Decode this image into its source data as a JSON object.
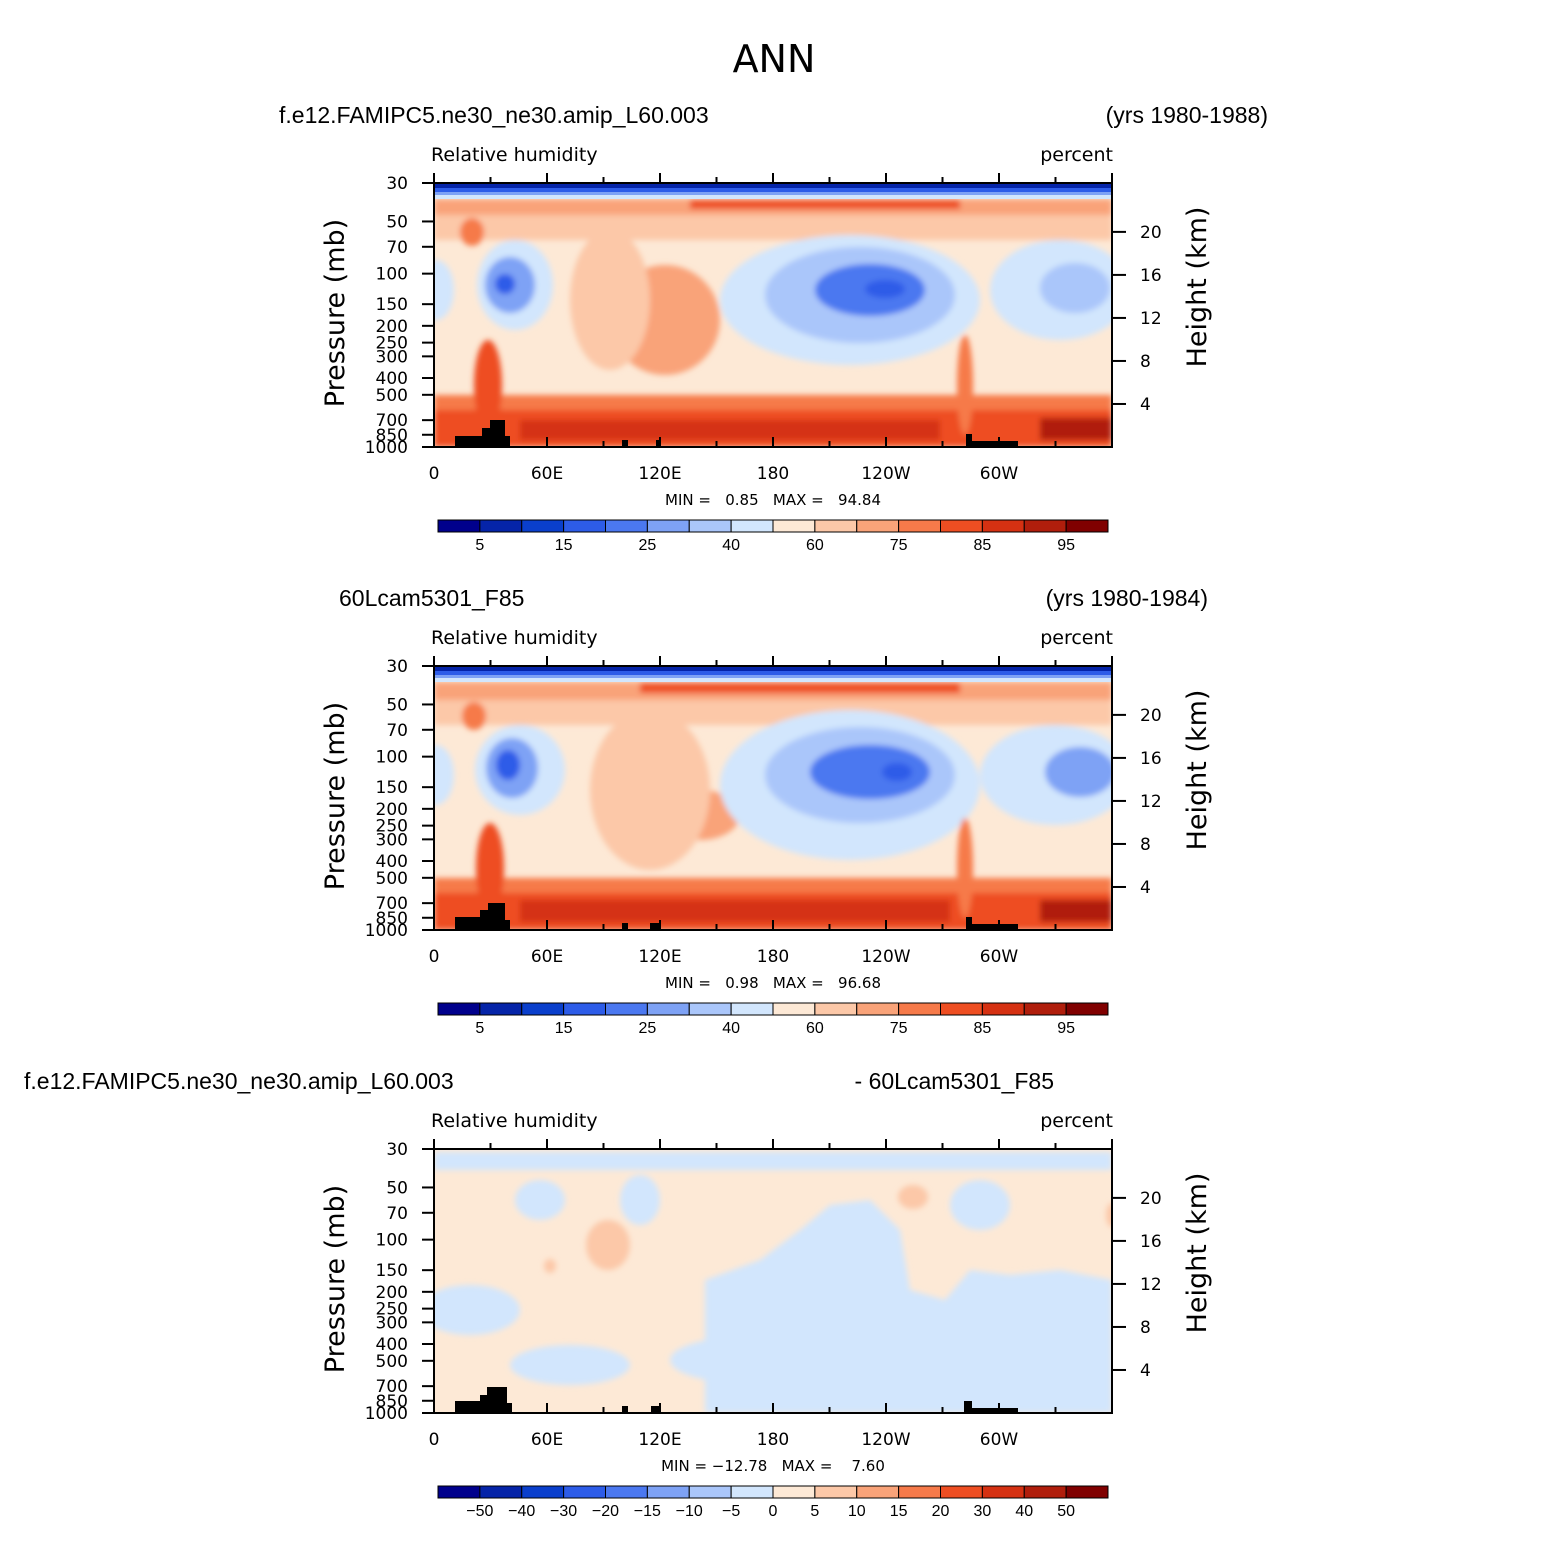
{
  "figure": {
    "title": "ANN"
  },
  "chart_data": [
    {
      "type": "heatmap",
      "title_left": "f.e12.FAMIPC5.ne30_ne30.amip_L60.003",
      "title_right": "(yrs 1980-1988)",
      "subtitle_left": "Relative humidity",
      "subtitle_right": "percent",
      "ylabel": "Pressure (mb)",
      "ylabel_right": "Height (km)",
      "x_ticks": [
        "0",
        "60E",
        "120E",
        "180",
        "120W",
        "60W"
      ],
      "y_ticks": [
        "30",
        "50",
        "70",
        "100",
        "150",
        "200",
        "250",
        "300",
        "400",
        "500",
        "700",
        "850",
        "1000"
      ],
      "y_right_ticks": [
        "20",
        "16",
        "12",
        "8",
        "4"
      ],
      "stats_text": "MIN =   0.85   MAX =   94.84",
      "min": 0.85,
      "max": 94.84,
      "colorbar_labels": [
        "5",
        "15",
        "25",
        "40",
        "60",
        "75",
        "85",
        "95"
      ],
      "colors": [
        "#00008c",
        "#0524a8",
        "#0a3fcc",
        "#2d5ce8",
        "#4b78f0",
        "#7ea2f5",
        "#aac6fa",
        "#d2e6fd",
        "#fde9d6",
        "#fcc8a8",
        "#f9a379",
        "#f67a4a",
        "#ee4e22",
        "#d53112",
        "#b01e0c",
        "#800000"
      ]
    },
    {
      "type": "heatmap",
      "title_left": "60Lcam5301_F85",
      "title_right": "(yrs 1980-1984)",
      "subtitle_left": "Relative humidity",
      "subtitle_right": "percent",
      "ylabel": "Pressure (mb)",
      "ylabel_right": "Height (km)",
      "x_ticks": [
        "0",
        "60E",
        "120E",
        "180",
        "120W",
        "60W"
      ],
      "y_ticks": [
        "30",
        "50",
        "70",
        "100",
        "150",
        "200",
        "250",
        "300",
        "400",
        "500",
        "700",
        "850",
        "1000"
      ],
      "y_right_ticks": [
        "20",
        "16",
        "12",
        "8",
        "4"
      ],
      "stats_text": "MIN =   0.98   MAX =   96.68",
      "min": 0.98,
      "max": 96.68,
      "colorbar_labels": [
        "5",
        "15",
        "25",
        "40",
        "60",
        "75",
        "85",
        "95"
      ],
      "colors": [
        "#00008c",
        "#0524a8",
        "#0a3fcc",
        "#2d5ce8",
        "#4b78f0",
        "#7ea2f5",
        "#aac6fa",
        "#d2e6fd",
        "#fde9d6",
        "#fcc8a8",
        "#f9a379",
        "#f67a4a",
        "#ee4e22",
        "#d53112",
        "#b01e0c",
        "#800000"
      ]
    },
    {
      "type": "heatmap",
      "title_left": "f.e12.FAMIPC5.ne30_ne30.amip_L60.003",
      "title_right": "- 60Lcam5301_F85",
      "subtitle_left": "Relative humidity",
      "subtitle_right": "percent",
      "ylabel": "Pressure (mb)",
      "ylabel_right": "Height (km)",
      "x_ticks": [
        "0",
        "60E",
        "120E",
        "180",
        "120W",
        "60W"
      ],
      "y_ticks": [
        "30",
        "50",
        "70",
        "100",
        "150",
        "200",
        "250",
        "300",
        "400",
        "500",
        "700",
        "850",
        "1000"
      ],
      "y_right_ticks": [
        "20",
        "16",
        "12",
        "8",
        "4"
      ],
      "stats_text": "MIN = −12.78   MAX =    7.60",
      "min": -12.78,
      "max": 7.6,
      "colorbar_labels": [
        "−50",
        "−40",
        "−30",
        "−20",
        "−15",
        "−10",
        "−5",
        "0",
        "5",
        "10",
        "15",
        "20",
        "30",
        "40",
        "50"
      ],
      "colors": [
        "#00008c",
        "#0524a8",
        "#0a3fcc",
        "#2d5ce8",
        "#4b78f0",
        "#7ea2f5",
        "#aac6fa",
        "#d2e6fd",
        "#fde9d6",
        "#fcc8a8",
        "#f9a379",
        "#f67a4a",
        "#ee4e22",
        "#d53112",
        "#b01e0c",
        "#800000"
      ]
    }
  ]
}
